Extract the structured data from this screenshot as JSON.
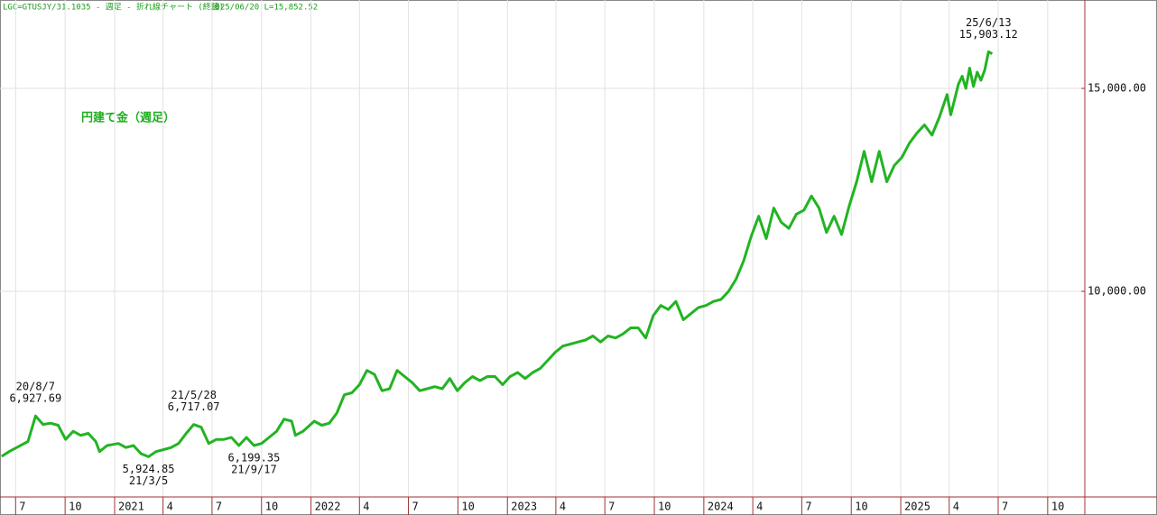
{
  "chart_data": {
    "type": "line",
    "title": "LGC=GTUSJY/31.1035 - 週足 - 折れ線チャート (終値)",
    "subtitle": "2025/06/20 L=15,852.52",
    "x": [
      "2020-06-05",
      "2020-06-19",
      "2020-07-03",
      "2020-07-24",
      "2020-08-07",
      "2020-08-21",
      "2020-09-04",
      "2020-09-18",
      "2020-10-02",
      "2020-10-16",
      "2020-10-30",
      "2020-11-13",
      "2020-11-27",
      "2020-12-04",
      "2020-12-18",
      "2021-01-08",
      "2021-01-22",
      "2021-02-05",
      "2021-02-19",
      "2021-03-05",
      "2021-03-19",
      "2021-04-02",
      "2021-04-16",
      "2021-04-30",
      "2021-05-14",
      "2021-05-28",
      "2021-06-11",
      "2021-06-25",
      "2021-07-09",
      "2021-07-23",
      "2021-08-06",
      "2021-08-20",
      "2021-09-03",
      "2021-09-17",
      "2021-10-01",
      "2021-10-15",
      "2021-10-29",
      "2021-11-12",
      "2021-11-26",
      "2021-12-03",
      "2021-12-17",
      "2022-01-07",
      "2022-01-21",
      "2022-02-04",
      "2022-02-18",
      "2022-03-04",
      "2022-03-18",
      "2022-04-01",
      "2022-04-15",
      "2022-04-29",
      "2022-05-13",
      "2022-05-27",
      "2022-06-10",
      "2022-06-24",
      "2022-07-08",
      "2022-07-22",
      "2022-08-05",
      "2022-08-19",
      "2022-09-02",
      "2022-09-16",
      "2022-09-30",
      "2022-10-14",
      "2022-10-28",
      "2022-11-11",
      "2022-11-25",
      "2022-12-09",
      "2022-12-23",
      "2023-01-06",
      "2023-01-20",
      "2023-02-03",
      "2023-02-17",
      "2023-03-03",
      "2023-03-17",
      "2023-03-31",
      "2023-04-14",
      "2023-04-28",
      "2023-05-12",
      "2023-05-26",
      "2023-06-09",
      "2023-06-23",
      "2023-07-07",
      "2023-07-21",
      "2023-08-04",
      "2023-08-18",
      "2023-09-01",
      "2023-09-15",
      "2023-09-29",
      "2023-10-13",
      "2023-10-27",
      "2023-11-10",
      "2023-11-24",
      "2023-12-08",
      "2023-12-22",
      "2024-01-05",
      "2024-01-19",
      "2024-02-02",
      "2024-02-16",
      "2024-03-01",
      "2024-03-15",
      "2024-03-29",
      "2024-04-12",
      "2024-04-26",
      "2024-05-10",
      "2024-05-24",
      "2024-06-07",
      "2024-06-21",
      "2024-07-05",
      "2024-07-19",
      "2024-08-02",
      "2024-08-16",
      "2024-08-30",
      "2024-09-13",
      "2024-09-27",
      "2024-10-11",
      "2024-10-25",
      "2024-11-08",
      "2024-11-22",
      "2024-12-06",
      "2024-12-20",
      "2025-01-03",
      "2025-01-17",
      "2025-01-31",
      "2025-02-14",
      "2025-02-28",
      "2025-03-14",
      "2025-03-28",
      "2025-04-04",
      "2025-04-18",
      "2025-04-25",
      "2025-05-02",
      "2025-05-09",
      "2025-05-16",
      "2025-05-23",
      "2025-05-30",
      "2025-06-06",
      "2025-06-13",
      "2025-06-20"
    ],
    "series": [
      {
        "name": "円建て金（週足）",
        "color": "#22b422",
        "values": [
          5933,
          6050,
          6150,
          6300,
          6927.69,
          6720,
          6750,
          6700,
          6350,
          6550,
          6450,
          6500,
          6300,
          6050,
          6200,
          6250,
          6150,
          6200,
          6000,
          5924.85,
          6050,
          6100,
          6150,
          6250,
          6500,
          6717.07,
          6650,
          6250,
          6350,
          6350,
          6400,
          6200,
          6400,
          6199.35,
          6250,
          6400,
          6550,
          6850,
          6800,
          6450,
          6550,
          6800,
          6700,
          6750,
          7000,
          7450,
          7500,
          7700,
          8050,
          7950,
          7550,
          7600,
          8050,
          7900,
          7750,
          7550,
          7600,
          7650,
          7600,
          7850,
          7550,
          7750,
          7900,
          7800,
          7900,
          7900,
          7700,
          7900,
          8000,
          7850,
          8000,
          8100,
          8300,
          8500,
          8650,
          8700,
          8750,
          8800,
          8900,
          8750,
          8900,
          8850,
          8950,
          9100,
          9100,
          8850,
          9400,
          9650,
          9550,
          9750,
          9300,
          9450,
          9600,
          9650,
          9750,
          9800,
          10000,
          10300,
          10750,
          11350,
          11850,
          11300,
          12050,
          11700,
          11550,
          11900,
          12000,
          12350,
          12050,
          11450,
          11850,
          11400,
          12100,
          12700,
          13450,
          12700,
          13450,
          12700,
          13100,
          13300,
          13650,
          13900,
          14100,
          13850,
          14300,
          14850,
          14350,
          15100,
          15300,
          15000,
          15500,
          15050,
          15400,
          15200,
          15450,
          15903.12,
          15852.52
        ]
      }
    ],
    "annotations": [
      {
        "x": "2020-08-07",
        "labels": [
          "20/8/7",
          "6,927.69"
        ],
        "position": "above"
      },
      {
        "x": "2021-03-05",
        "labels": [
          "5,924.85",
          "21/3/5"
        ],
        "position": "below"
      },
      {
        "x": "2021-05-28",
        "labels": [
          "21/5/28",
          "6,717.07"
        ],
        "position": "above"
      },
      {
        "x": "2021-09-17",
        "labels": [
          "6,199.35",
          "21/9/17"
        ],
        "position": "below"
      },
      {
        "x": "2025-06-13",
        "labels": [
          "25/6/13",
          "15,903.12"
        ],
        "position": "above"
      }
    ],
    "xlim": [
      "2020-06-02",
      "2025-12-09"
    ],
    "xticks": [
      {
        "value": "2020-07-01",
        "label": "7"
      },
      {
        "value": "2020-10-01",
        "label": "10"
      },
      {
        "value": "2021-01-01",
        "label": "2021"
      },
      {
        "value": "2021-04-01",
        "label": "4"
      },
      {
        "value": "2021-07-01",
        "label": "7"
      },
      {
        "value": "2021-10-01",
        "label": "10"
      },
      {
        "value": "2022-01-01",
        "label": "2022"
      },
      {
        "value": "2022-04-01",
        "label": "4"
      },
      {
        "value": "2022-07-01",
        "label": "7"
      },
      {
        "value": "2022-10-01",
        "label": "10"
      },
      {
        "value": "2023-01-01",
        "label": "2023"
      },
      {
        "value": "2023-04-01",
        "label": "4"
      },
      {
        "value": "2023-07-01",
        "label": "7"
      },
      {
        "value": "2023-10-01",
        "label": "10"
      },
      {
        "value": "2024-01-01",
        "label": "2024"
      },
      {
        "value": "2024-04-01",
        "label": "4"
      },
      {
        "value": "2024-07-01",
        "label": "7"
      },
      {
        "value": "2024-10-01",
        "label": "10"
      },
      {
        "value": "2025-01-01",
        "label": "2025"
      },
      {
        "value": "2025-04-01",
        "label": "4"
      },
      {
        "value": "2025-07-01",
        "label": "7"
      },
      {
        "value": "2025-10-01",
        "label": "10"
      }
    ],
    "ylim": [
      4933,
      17178
    ],
    "yticks": [
      {
        "value": 10000,
        "label": "10,000.00"
      },
      {
        "value": 15000,
        "label": "15,000.00"
      }
    ],
    "grid": true,
    "legend": "upper left"
  }
}
